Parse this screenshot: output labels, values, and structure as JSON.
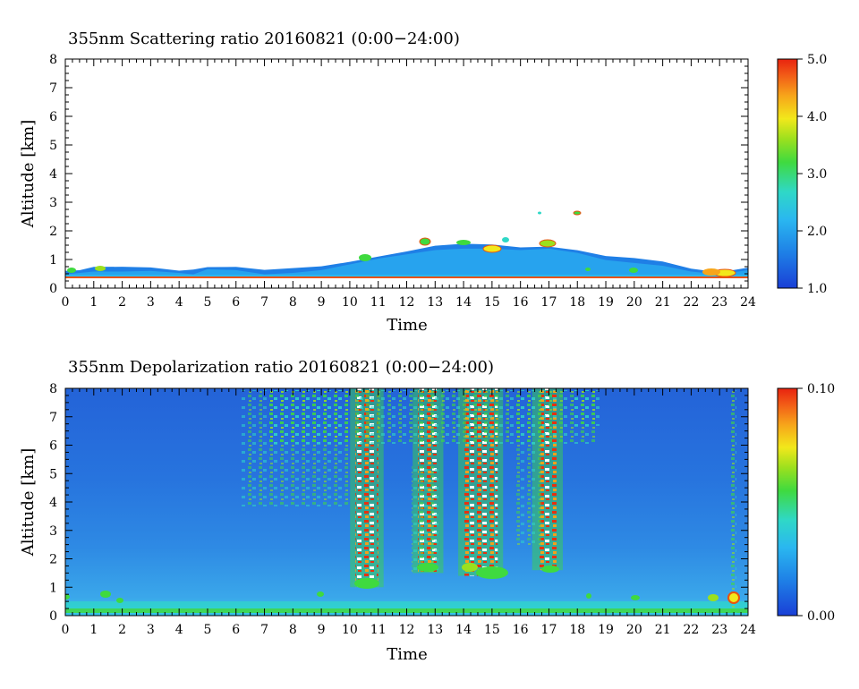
{
  "chart_data": [
    {
      "type": "heatmap",
      "title": "355nm Scattering ratio  20160821 (0:00−24:00)",
      "xlabel": "Time",
      "ylabel": "Altitude [km]",
      "xlim": [
        0,
        24
      ],
      "ylim": [
        0,
        8
      ],
      "xticks": [
        "0",
        "1",
        "2",
        "3",
        "4",
        "5",
        "6",
        "7",
        "8",
        "9",
        "10",
        "11",
        "12",
        "13",
        "14",
        "15",
        "16",
        "17",
        "18",
        "19",
        "20",
        "21",
        "22",
        "23",
        "24"
      ],
      "yticks": [
        "0",
        "1",
        "2",
        "3",
        "4",
        "5",
        "6",
        "7",
        "8"
      ],
      "colorbar": {
        "range": [
          1.0,
          5.0
        ],
        "ticks": [
          "1.0",
          "2.0",
          "3.0",
          "4.0",
          "5.0"
        ]
      },
      "layer_top_km": [
        [
          0,
          0.6
        ],
        [
          0.5,
          0.65
        ],
        [
          1,
          0.7
        ],
        [
          2,
          0.7
        ],
        [
          3,
          0.72
        ],
        [
          4,
          0.65
        ],
        [
          4.5,
          0.6
        ],
        [
          5,
          0.78
        ],
        [
          6,
          0.75
        ],
        [
          7,
          0.6
        ],
        [
          8,
          0.65
        ],
        [
          9,
          0.75
        ],
        [
          10,
          0.95
        ],
        [
          11,
          1.15
        ],
        [
          12,
          1.3
        ],
        [
          13,
          1.45
        ],
        [
          14,
          1.5
        ],
        [
          15,
          1.5
        ],
        [
          16,
          1.45
        ],
        [
          17,
          1.5
        ],
        [
          18,
          1.35
        ],
        [
          19,
          1.1
        ],
        [
          20,
          1.0
        ],
        [
          21,
          0.9
        ],
        [
          22,
          0.7
        ],
        [
          23,
          0.6
        ],
        [
          24,
          0.75
        ]
      ],
      "surface_layer_km": 0.35
    },
    {
      "type": "heatmap",
      "title": "355nm Depolarization ratio  20160821 (0:00−24:00)",
      "xlabel": "Time",
      "ylabel": "Altitude [km]",
      "xlim": [
        0,
        24
      ],
      "ylim": [
        0,
        8
      ],
      "xticks": [
        "0",
        "1",
        "2",
        "3",
        "4",
        "5",
        "6",
        "7",
        "8",
        "9",
        "10",
        "11",
        "12",
        "13",
        "14",
        "15",
        "16",
        "17",
        "18",
        "19",
        "20",
        "21",
        "22",
        "23",
        "24"
      ],
      "yticks": [
        "0",
        "1",
        "2",
        "3",
        "4",
        "5",
        "6",
        "7",
        "8"
      ],
      "colorbar": {
        "range": [
          0.0,
          0.1
        ],
        "ticks": [
          "0.00",
          "0.10"
        ]
      },
      "high_depolarization_bands": [
        {
          "from": 10.2,
          "to": 11.0,
          "bottom_km": 1.0,
          "top_km": 8.0
        },
        {
          "from": 12.4,
          "to": 13.1,
          "bottom_km": 1.5,
          "top_km": 8.0
        },
        {
          "from": 14.0,
          "to": 15.2,
          "bottom_km": 1.4,
          "top_km": 8.0
        },
        {
          "from": 16.6,
          "to": 17.3,
          "bottom_km": 1.6,
          "top_km": 8.0
        }
      ]
    }
  ]
}
